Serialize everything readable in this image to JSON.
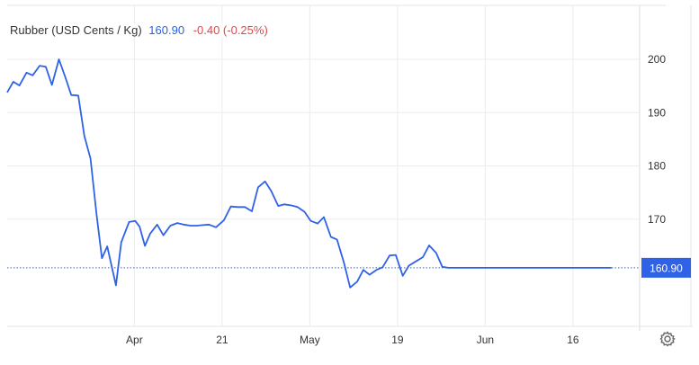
{
  "legend": {
    "name": "Rubber (USD Cents / Kg)",
    "price": "160.90",
    "change": "-0.40 (-0.25%)"
  },
  "colors": {
    "line": "#2f62e6",
    "last_badge": "#2f62e6",
    "change": "#d94b4b",
    "grid": "#ececec"
  },
  "icons": {
    "settings": "gear-icon"
  },
  "chart_data": {
    "type": "line",
    "title": "",
    "xlabel": "",
    "ylabel": "",
    "ylim": [
      150,
      210
    ],
    "yticks": [
      170,
      180,
      190,
      200
    ],
    "xticks": [
      {
        "label": "Apr",
        "x": 13.0
      },
      {
        "label": "21",
        "x": 23.0
      },
      {
        "label": "May",
        "x": 33.0
      },
      {
        "label": "19",
        "x": 43.0
      },
      {
        "label": "Jun",
        "x": 53.0
      },
      {
        "label": "16",
        "x": 63.0
      }
    ],
    "xlim": [
      -1.5,
      73.6
    ],
    "grid": true,
    "last_value_label": "160.90",
    "series": [
      {
        "x": [
          -1.5,
          -0.8,
          -0.1,
          0.7,
          1.4,
          2.2,
          2.9,
          3.6,
          4.4,
          5.1,
          5.8,
          6.6,
          7.3,
          8.0,
          8.7,
          9.3,
          9.9,
          10.9,
          11.5,
          12.4,
          13.1,
          13.6,
          14.2,
          14.8,
          15.6,
          16.3,
          17.1,
          17.9,
          18.6,
          19.4,
          20.1,
          20.8,
          21.5,
          22.3,
          23.2,
          24.0,
          24.8,
          25.6,
          26.4,
          27.1,
          27.9,
          28.6,
          29.4,
          30.1,
          30.9,
          31.6,
          32.4,
          33.1,
          33.9,
          34.6,
          35.4,
          36.1,
          36.9,
          37.6,
          38.4,
          39.1,
          39.8,
          40.6,
          41.3,
          42.1,
          42.8,
          43.6,
          44.3,
          45.1,
          45.9,
          46.6,
          47.4,
          48.1,
          48.8,
          49.6,
          50.3,
          51.1,
          51.8,
          52.6,
          53.3,
          54.0,
          54.8,
          55.5,
          56.3,
          57.0,
          57.8,
          58.5,
          59.2,
          60.0,
          60.7,
          61.5,
          62.2,
          63.0,
          63.7,
          64.4,
          65.2,
          65.9,
          66.7,
          67.4,
          68.2,
          68.9,
          69.7
        ],
        "values": [
          193.8,
          195.8,
          195.1,
          197.5,
          197.0,
          198.8,
          198.6,
          195.2,
          200.0,
          196.8,
          193.3,
          193.2,
          185.6,
          181.4,
          170.8,
          162.7,
          164.9,
          157.6,
          165.7,
          169.5,
          169.7,
          168.6,
          165.0,
          167.3,
          169.0,
          167.0,
          168.8,
          169.3,
          169.0,
          168.8,
          168.8,
          168.9,
          169.0,
          168.5,
          169.8,
          172.4,
          172.3,
          172.3,
          171.5,
          176.0,
          177.1,
          175.3,
          172.5,
          172.8,
          172.6,
          172.3,
          171.4,
          169.7,
          169.2,
          170.4,
          166.7,
          166.2,
          161.8,
          157.2,
          158.3,
          160.5,
          159.6,
          160.5,
          161.0,
          163.2,
          163.3,
          159.4,
          161.3,
          162.1,
          162.9,
          165.1,
          163.7,
          161.1,
          160.9,
          160.9,
          160.9,
          160.9,
          160.9,
          160.9,
          160.9,
          160.9,
          160.9,
          160.9,
          160.9,
          160.9,
          160.9,
          160.9,
          160.9,
          160.9,
          160.9,
          160.9,
          160.9,
          160.9,
          160.9,
          160.9,
          160.9,
          160.9,
          160.9,
          160.9,
          160.9,
          160.9,
          160.9
        ]
      }
    ]
  }
}
